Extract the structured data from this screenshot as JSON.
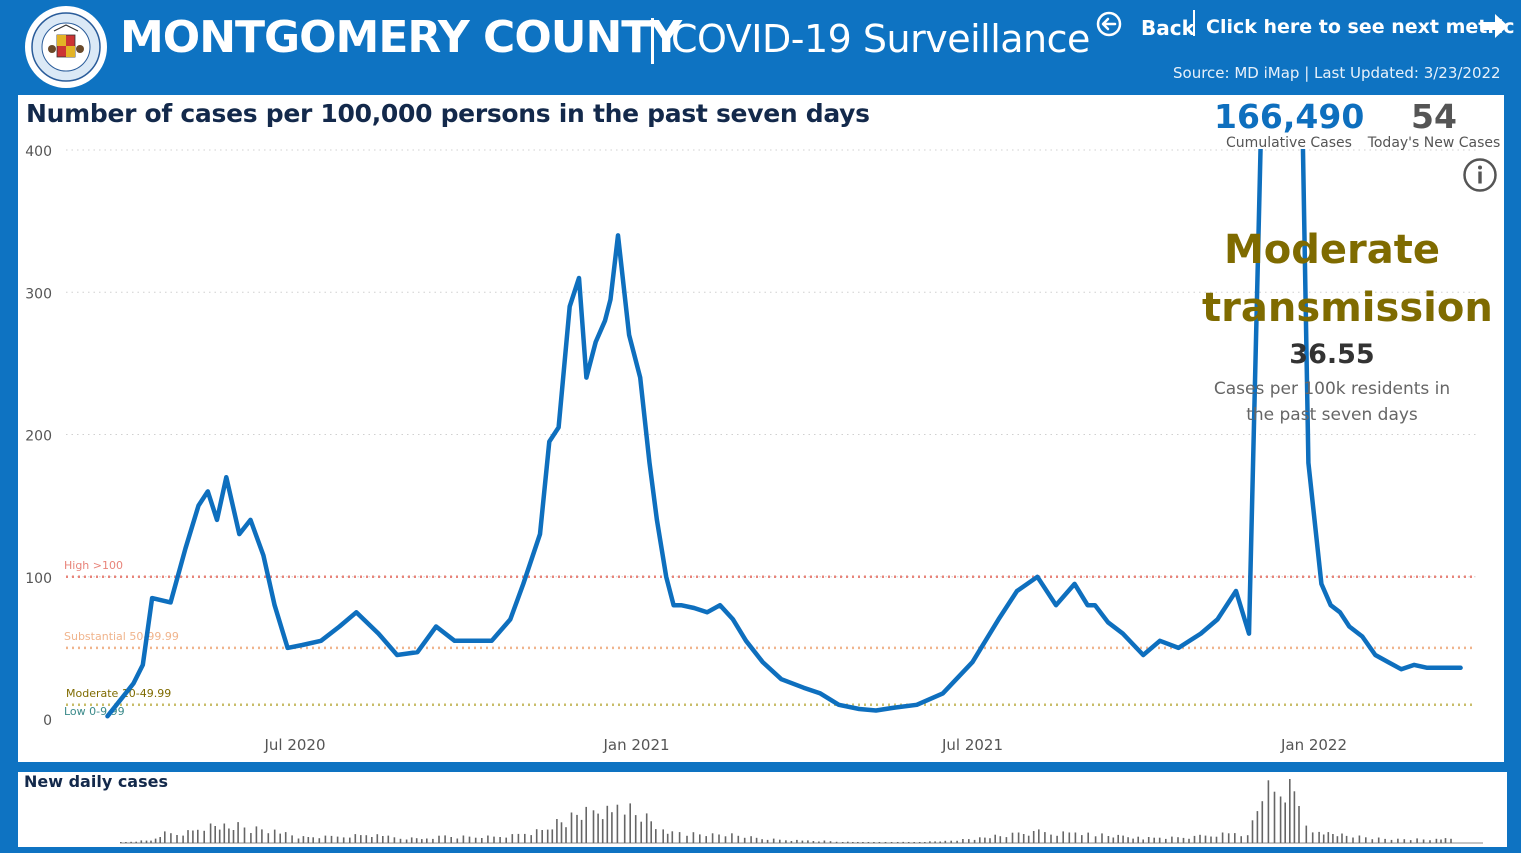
{
  "header": {
    "county": "MONTGOMERY COUNTY",
    "subtitle": "COVID-19 Surveillance",
    "back_label": "Back",
    "next_label": "Click here to see next metric",
    "source": "Source: MD iMap | Last Updated:  3/23/2022"
  },
  "colors": {
    "brand": "#0e73c2",
    "line": "#0e6fbe",
    "high": "#e8847a",
    "substantial": "#f0b48c",
    "moderate": "#c8bd6a",
    "moderate_text": "#7f6b00"
  },
  "kpis": {
    "cumulative": {
      "value": "166,490",
      "label": "Cumulative Cases"
    },
    "today": {
      "value": "54",
      "label": "Today's New Cases"
    }
  },
  "status": {
    "level_line1": "Moderate",
    "level_line2": "transmission",
    "value": "36.55",
    "desc_line1": "Cases per 100k residents in",
    "desc_line2": "the past seven days"
  },
  "chart_data": {
    "type": "line",
    "title": "Number of cases per 100,000 persons in the past seven days",
    "ylim": [
      0,
      400
    ],
    "yticks": [
      0,
      100,
      200,
      300,
      400
    ],
    "xticks": [
      "Jul 2020",
      "Jan 2021",
      "Jul 2021",
      "Jan 2022"
    ],
    "thresholds": [
      {
        "label": "High >100",
        "value": 100,
        "color": "#e8847a"
      },
      {
        "label": "Substantial 50-99.99",
        "value": 50,
        "color": "#f0b48c"
      },
      {
        "label": "Moderate 10-49.99",
        "value": 10,
        "color": "#c8bd6a"
      },
      {
        "label": "Low 0-9.99",
        "value": 0,
        "color": "#3a8a8a"
      }
    ],
    "series": [
      {
        "x": [
          "2020-03-22",
          "2020-04-05",
          "2020-04-10",
          "2020-04-15",
          "2020-04-25",
          "2020-05-03",
          "2020-05-10",
          "2020-05-15",
          "2020-05-20",
          "2020-05-25",
          "2020-06-01",
          "2020-06-07",
          "2020-06-14",
          "2020-06-20",
          "2020-06-27",
          "2020-07-05",
          "2020-07-15",
          "2020-07-25",
          "2020-08-03",
          "2020-08-15",
          "2020-08-25",
          "2020-09-05",
          "2020-09-15",
          "2020-09-25",
          "2020-10-05",
          "2020-10-15",
          "2020-10-25",
          "2020-11-01",
          "2020-11-10",
          "2020-11-15",
          "2020-11-20",
          "2020-11-26",
          "2020-12-01",
          "2020-12-05",
          "2020-12-10",
          "2020-12-15",
          "2020-12-18",
          "2020-12-22",
          "2020-12-28",
          "2021-01-03",
          "2021-01-08",
          "2021-01-12",
          "2021-01-17",
          "2021-01-21",
          "2021-01-25",
          "2021-02-01",
          "2021-02-08",
          "2021-02-15",
          "2021-02-22",
          "2021-03-01",
          "2021-03-10",
          "2021-03-20",
          "2021-04-01",
          "2021-04-10",
          "2021-04-20",
          "2021-05-01",
          "2021-05-10",
          "2021-05-20",
          "2021-06-01",
          "2021-06-15",
          "2021-07-01",
          "2021-07-15",
          "2021-07-25",
          "2021-08-05",
          "2021-08-15",
          "2021-08-25",
          "2021-09-01",
          "2021-09-05",
          "2021-09-12",
          "2021-09-20",
          "2021-10-01",
          "2021-10-10",
          "2021-10-20",
          "2021-11-01",
          "2021-11-10",
          "2021-11-20",
          "2021-11-27",
          "2021-12-05",
          "2021-12-15",
          "2021-12-20",
          "2021-12-25",
          "2021-12-29",
          "2022-01-05",
          "2022-01-10",
          "2022-01-15",
          "2022-01-20",
          "2022-01-27",
          "2022-02-03",
          "2022-02-10",
          "2022-02-17",
          "2022-02-24",
          "2022-03-03",
          "2022-03-10",
          "2022-03-15",
          "2022-03-21"
        ],
        "y": [
          2,
          25,
          38,
          85,
          82,
          120,
          150,
          160,
          140,
          170,
          130,
          140,
          115,
          80,
          50,
          52,
          55,
          65,
          75,
          60,
          45,
          47,
          65,
          55,
          55,
          55,
          70,
          95,
          130,
          195,
          205,
          290,
          310,
          240,
          265,
          280,
          295,
          340,
          270,
          240,
          180,
          140,
          100,
          80,
          80,
          78,
          75,
          80,
          70,
          55,
          40,
          28,
          22,
          18,
          10,
          7,
          6,
          8,
          10,
          18,
          40,
          70,
          90,
          100,
          80,
          95,
          80,
          80,
          68,
          60,
          45,
          55,
          50,
          60,
          70,
          90,
          60,
          500,
          450,
          520,
          480,
          180,
          95,
          80,
          75,
          65,
          58,
          45,
          40,
          35,
          38,
          36,
          36,
          36,
          36
        ]
      }
    ]
  },
  "bottom": {
    "title": "New daily cases"
  }
}
